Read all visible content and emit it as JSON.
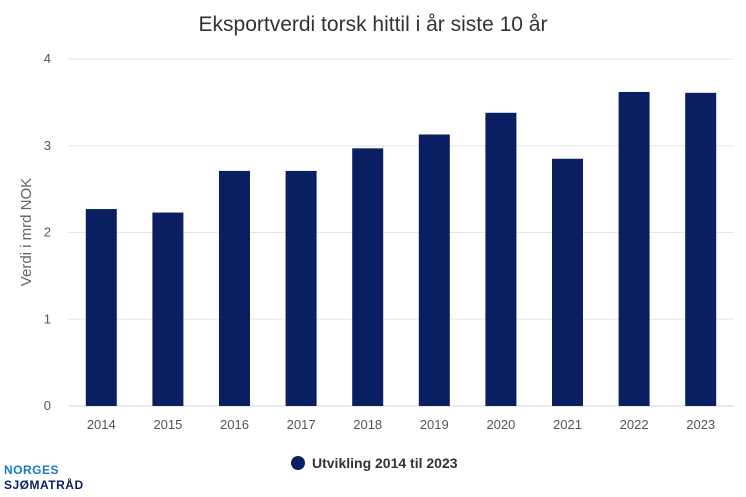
{
  "chart_data": {
    "type": "bar",
    "title": "Eksportverdi torsk hittil i år siste 10 år",
    "xlabel": "",
    "ylabel": "Verdi i mrd NOK",
    "categories": [
      "2014",
      "2015",
      "2016",
      "2017",
      "2018",
      "2019",
      "2020",
      "2021",
      "2022",
      "2023"
    ],
    "series": [
      {
        "name": "Utvikling 2014 til 2023",
        "values": [
          2.27,
          2.23,
          2.71,
          2.71,
          2.97,
          3.13,
          3.38,
          2.85,
          3.62,
          3.61
        ],
        "color": "#0a1f62"
      }
    ],
    "ylim": [
      0,
      4
    ],
    "yticks": [
      "0",
      "1",
      "2",
      "3",
      "4"
    ],
    "grid": true,
    "legend_position": "bottom-center"
  },
  "logo": {
    "line1": "NORGES",
    "line2": "SJØMATRÅD",
    "color1": "#1b78c2",
    "color2": "#0a1f62"
  }
}
